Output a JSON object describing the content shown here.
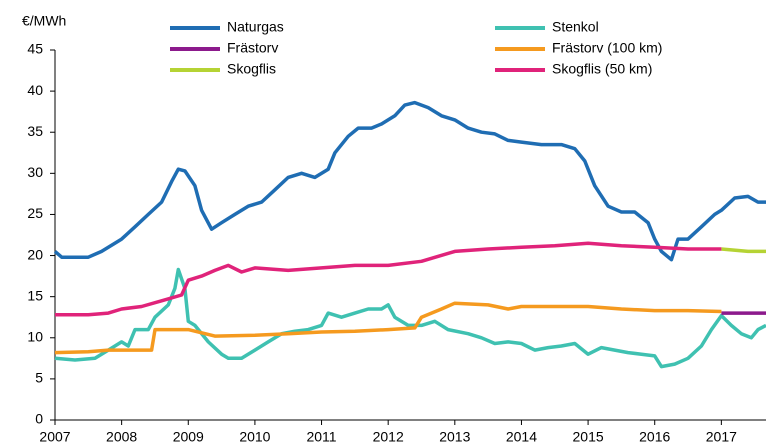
{
  "chart_data": {
    "type": "line",
    "y_label": "€/MWh",
    "xlim": [
      2007,
      2017.67
    ],
    "xticks": [
      2007,
      2008,
      2009,
      2010,
      2011,
      2012,
      2013,
      2014,
      2015,
      2016,
      2017
    ],
    "ylim": [
      0,
      45
    ],
    "yticks": [
      0,
      5,
      10,
      15,
      20,
      25,
      30,
      35,
      40,
      45
    ],
    "grid": false,
    "series": [
      {
        "name": "Naturgas",
        "color": "#1f6db3",
        "x": [
          2007.0,
          2007.1,
          2007.3,
          2007.5,
          2007.7,
          2008.0,
          2008.2,
          2008.4,
          2008.6,
          2008.75,
          2008.85,
          2008.95,
          2009.1,
          2009.2,
          2009.35,
          2009.5,
          2009.7,
          2009.9,
          2010.1,
          2010.3,
          2010.5,
          2010.7,
          2010.9,
          2011.1,
          2011.2,
          2011.4,
          2011.55,
          2011.75,
          2011.9,
          2012.1,
          2012.25,
          2012.4,
          2012.6,
          2012.8,
          2013.0,
          2013.2,
          2013.4,
          2013.6,
          2013.8,
          2014.0,
          2014.3,
          2014.6,
          2014.8,
          2014.95,
          2015.1,
          2015.3,
          2015.5,
          2015.7,
          2015.9,
          2016.0,
          2016.1,
          2016.25,
          2016.35,
          2016.5,
          2016.7,
          2016.9,
          2017.0,
          2017.2,
          2017.4,
          2017.55,
          2017.67
        ],
        "values": [
          20.5,
          19.8,
          19.8,
          19.8,
          20.5,
          22,
          23.5,
          25,
          26.5,
          29,
          30.5,
          30.3,
          28.5,
          25.5,
          23.2,
          24,
          25,
          26,
          26.5,
          28,
          29.5,
          30,
          29.5,
          30.5,
          32.5,
          34.5,
          35.5,
          35.5,
          36,
          37,
          38.3,
          38.6,
          38,
          37,
          36.5,
          35.5,
          35,
          34.8,
          34,
          33.8,
          33.5,
          33.5,
          33,
          31.5,
          28.5,
          26,
          25.3,
          25.3,
          24,
          22,
          20.5,
          19.5,
          22,
          22,
          23.5,
          25,
          25.5,
          27,
          27.2,
          26.5,
          26.5
        ]
      },
      {
        "name": "Stenkol",
        "color": "#3fc1b1",
        "x": [
          2007.0,
          2007.3,
          2007.6,
          2007.8,
          2008.0,
          2008.1,
          2008.2,
          2008.4,
          2008.5,
          2008.7,
          2008.8,
          2008.85,
          2008.95,
          2009.0,
          2009.1,
          2009.3,
          2009.5,
          2009.6,
          2009.8,
          2010.0,
          2010.2,
          2010.4,
          2010.6,
          2010.8,
          2011.0,
          2011.1,
          2011.3,
          2011.5,
          2011.7,
          2011.9,
          2012.0,
          2012.1,
          2012.3,
          2012.5,
          2012.7,
          2012.9,
          2013.2,
          2013.4,
          2013.6,
          2013.8,
          2014.0,
          2014.2,
          2014.4,
          2014.6,
          2014.8,
          2015.0,
          2015.2,
          2015.4,
          2015.6,
          2015.8,
          2016.0,
          2016.1,
          2016.3,
          2016.5,
          2016.7,
          2016.85,
          2017.0,
          2017.15,
          2017.3,
          2017.45,
          2017.55,
          2017.67
        ],
        "values": [
          7.5,
          7.3,
          7.5,
          8.5,
          9.5,
          9,
          11,
          11,
          12.5,
          14,
          16,
          18.3,
          16,
          12,
          11.5,
          9.5,
          8,
          7.5,
          7.5,
          8.5,
          9.5,
          10.5,
          10.8,
          11,
          11.5,
          13,
          12.5,
          13,
          13.5,
          13.5,
          14,
          12.5,
          11.5,
          11.5,
          12,
          11,
          10.5,
          10,
          9.3,
          9.5,
          9.3,
          8.5,
          8.8,
          9,
          9.3,
          8,
          8.8,
          8.5,
          8.2,
          8,
          7.8,
          6.5,
          6.8,
          7.5,
          9,
          11,
          12.7,
          11.5,
          10.5,
          10,
          11,
          11.5
        ]
      },
      {
        "name": "Frästorv",
        "color": "#8c1a8c",
        "x": [
          2017.0,
          2017.67
        ],
        "values": [
          13,
          13
        ]
      },
      {
        "name": "Frästorv (100 km)",
        "color": "#f59a1f",
        "x": [
          2007.0,
          2007.5,
          2007.8,
          2008.45,
          2008.5,
          2009.0,
          2009.4,
          2010.0,
          2010.5,
          2011.0,
          2011.5,
          2012.0,
          2012.4,
          2012.5,
          2012.8,
          2013.0,
          2013.5,
          2013.8,
          2014.0,
          2014.5,
          2015.0,
          2015.5,
          2016.0,
          2016.5,
          2017.0
        ],
        "values": [
          8.2,
          8.3,
          8.5,
          8.5,
          11,
          11,
          10.2,
          10.3,
          10.5,
          10.7,
          10.8,
          11,
          11.2,
          12.5,
          13.5,
          14.2,
          14,
          13.5,
          13.8,
          13.8,
          13.8,
          13.5,
          13.3,
          13.3,
          13.2
        ]
      },
      {
        "name": "Skogflis",
        "color": "#b5d334",
        "x": [
          2017.0,
          2017.4,
          2017.67
        ],
        "values": [
          20.8,
          20.5,
          20.5
        ]
      },
      {
        "name": "Skogflis (50 km)",
        "color": "#e0237a",
        "x": [
          2007.0,
          2007.5,
          2007.8,
          2008.0,
          2008.3,
          2008.6,
          2008.9,
          2009.0,
          2009.2,
          2009.4,
          2009.6,
          2009.8,
          2010.0,
          2010.5,
          2011.0,
          2011.5,
          2012.0,
          2012.5,
          2013.0,
          2013.5,
          2014.0,
          2014.5,
          2015.0,
          2015.5,
          2016.0,
          2016.5,
          2017.0
        ],
        "values": [
          12.8,
          12.8,
          13,
          13.5,
          13.8,
          14.5,
          15.2,
          17,
          17.5,
          18.2,
          18.8,
          18,
          18.5,
          18.2,
          18.5,
          18.8,
          18.8,
          19.3,
          20.5,
          20.8,
          21,
          21.2,
          21.5,
          21.2,
          21,
          20.8,
          20.8
        ]
      }
    ]
  }
}
